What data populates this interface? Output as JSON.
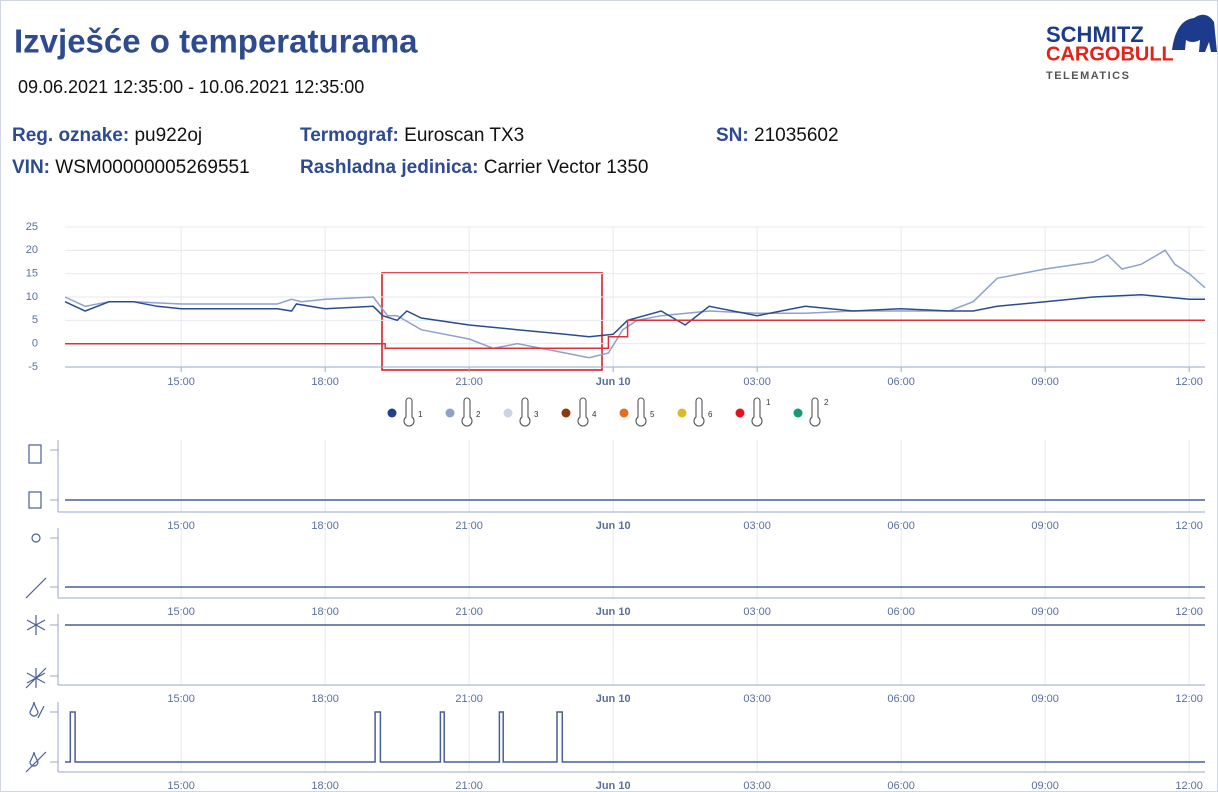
{
  "header": {
    "title": "Izvješće o temperaturama",
    "period": "09.06.2021 12:35:00 - 10.06.2021 12:35:00",
    "logo": {
      "line1": "SCHMITZ",
      "line2": "CARGOBULL",
      "line3": "TELEMATICS"
    },
    "fields": [
      {
        "label": "Reg. oznake:",
        "value": "pu922oj"
      },
      {
        "label": "Termograf:",
        "value": "Euroscan TX3"
      },
      {
        "label": "SN:",
        "value": "21035602"
      },
      {
        "label": "VIN:",
        "value": "WSM00000005269551"
      },
      {
        "label": "Rashladna jedinica:",
        "value": "Carrier Vector 1350"
      }
    ]
  },
  "chart_data": [
    {
      "type": "line",
      "xlim": [
        12.58,
        36.33
      ],
      "xticks": [
        {
          "value": 15,
          "label": "15:00"
        },
        {
          "value": 18,
          "label": "18:00"
        },
        {
          "value": 21,
          "label": "21:00"
        },
        {
          "value": 24,
          "label": "Jun 10"
        },
        {
          "value": 27,
          "label": "03:00"
        },
        {
          "value": 30,
          "label": "06:00"
        },
        {
          "value": 33,
          "label": "09:00"
        },
        {
          "value": 36,
          "label": "12:00"
        }
      ],
      "ylim": [
        -5,
        25
      ],
      "yticks": [
        -5,
        0,
        5,
        10,
        15,
        20,
        25
      ],
      "grid": true,
      "series": [
        {
          "color": "#8fa1cc",
          "x": [
            12.58,
            13.0,
            13.5,
            14.0,
            15.0,
            16.0,
            17.0,
            17.3,
            17.5,
            18.0,
            19.0,
            19.3,
            19.5,
            20.0,
            21.0,
            21.5,
            22.0,
            23.0,
            23.5,
            23.9,
            24.2,
            24.5,
            25.0,
            26.0,
            27.0,
            28.0,
            29.0,
            30.0,
            31.0,
            31.5,
            32.0,
            33.0,
            34.0,
            34.3,
            34.6,
            35.0,
            35.5,
            35.7,
            36.0,
            36.33
          ],
          "values": [
            10,
            8,
            9,
            9,
            8.5,
            8.5,
            8.5,
            9.5,
            9,
            9.5,
            10,
            6,
            6,
            3,
            1,
            -1,
            0,
            -2,
            -3,
            -2,
            3,
            5,
            6,
            7,
            6.5,
            6.5,
            7,
            7,
            7,
            9,
            14,
            16,
            17.5,
            19,
            16,
            17,
            20,
            17,
            15,
            12
          ]
        },
        {
          "color": "#2b4c8c",
          "x": [
            12.58,
            13.0,
            13.5,
            14.0,
            14.5,
            15.0,
            16.0,
            17.0,
            17.3,
            17.4,
            18.0,
            19.0,
            19.2,
            19.5,
            19.7,
            20.0,
            21.0,
            22.0,
            23.0,
            23.5,
            24.0,
            24.3,
            25.0,
            25.5,
            26.0,
            27.0,
            28.0,
            29.0,
            30.0,
            31.0,
            31.5,
            32.0,
            33.0,
            34.0,
            35.0,
            35.5,
            36.0,
            36.33
          ],
          "values": [
            9,
            7,
            9,
            9,
            8,
            7.5,
            7.5,
            7.5,
            7,
            8.5,
            7.5,
            8,
            6,
            5,
            7,
            5.5,
            4,
            3,
            2,
            1.5,
            2,
            5,
            7,
            4,
            8,
            6,
            8,
            7,
            7.5,
            7,
            7,
            8,
            9,
            10,
            10.5,
            10,
            9.5,
            9.5
          ]
        },
        {
          "color": "#e0303a",
          "x": [
            12.58,
            19.25,
            19.25,
            23.9,
            23.9,
            24.3,
            24.3,
            36.33
          ],
          "values": [
            0,
            0,
            -1,
            -1,
            1.5,
            1.5,
            5,
            5
          ]
        }
      ],
      "legend": [
        {
          "label": "1",
          "color": "#1f3f8f"
        },
        {
          "label": "2",
          "color": "#8fa1cc"
        },
        {
          "label": "3",
          "color": "#ccd3e3"
        },
        {
          "label": "4",
          "color": "#8b3a0f"
        },
        {
          "label": "5",
          "color": "#e66a1f"
        },
        {
          "label": "6",
          "color": "#e0b92a"
        },
        {
          "label": "1",
          "color": "#e3121e"
        },
        {
          "label": "2",
          "color": "#149a7a"
        }
      ]
    },
    {
      "type": "step",
      "xlim": [
        12.58,
        36.33
      ],
      "ylim": [
        0,
        1
      ],
      "xticks": [
        {
          "value": 15,
          "label": "15:00"
        },
        {
          "value": 18,
          "label": "18:00"
        },
        {
          "value": 21,
          "label": "21:00"
        },
        {
          "value": 24,
          "label": "Jun 10"
        },
        {
          "value": 27,
          "label": "03:00"
        },
        {
          "value": 30,
          "label": "06:00"
        },
        {
          "value": 33,
          "label": "09:00"
        },
        {
          "value": 36,
          "label": "12:00"
        }
      ],
      "series": [
        {
          "color": "#4a5f95",
          "x": [
            12.58,
            36.33
          ],
          "values": [
            0,
            0
          ]
        }
      ]
    },
    {
      "type": "step",
      "xlim": [
        12.58,
        36.33
      ],
      "ylim": [
        0,
        1
      ],
      "xticks": [
        {
          "value": 15,
          "label": "15:00"
        },
        {
          "value": 18,
          "label": "18:00"
        },
        {
          "value": 21,
          "label": "21:00"
        },
        {
          "value": 24,
          "label": "Jun 10"
        },
        {
          "value": 27,
          "label": "03:00"
        },
        {
          "value": 30,
          "label": "06:00"
        },
        {
          "value": 33,
          "label": "09:00"
        },
        {
          "value": 36,
          "label": "12:00"
        }
      ],
      "series": [
        {
          "color": "#4a5f95",
          "x": [
            12.58,
            36.33
          ],
          "values": [
            0,
            0
          ]
        }
      ]
    },
    {
      "type": "step",
      "xlim": [
        12.58,
        36.33
      ],
      "ylim": [
        0,
        1
      ],
      "xticks": [
        {
          "value": 15,
          "label": "15:00"
        },
        {
          "value": 18,
          "label": "18:00"
        },
        {
          "value": 21,
          "label": "21:00"
        },
        {
          "value": 24,
          "label": "Jun 10"
        },
        {
          "value": 27,
          "label": "03:00"
        },
        {
          "value": 30,
          "label": "06:00"
        },
        {
          "value": 33,
          "label": "09:00"
        },
        {
          "value": 36,
          "label": "12:00"
        }
      ],
      "series": [
        {
          "color": "#4a5f95",
          "x": [
            12.58,
            36.33
          ],
          "values": [
            1,
            1
          ]
        }
      ]
    },
    {
      "type": "step",
      "xlim": [
        12.58,
        36.33
      ],
      "ylim": [
        0,
        1
      ],
      "xticks": [
        {
          "value": 15,
          "label": "15:00"
        },
        {
          "value": 18,
          "label": "18:00"
        },
        {
          "value": 21,
          "label": "21:00"
        },
        {
          "value": 24,
          "label": "Jun 10"
        },
        {
          "value": 27,
          "label": "03:00"
        },
        {
          "value": 30,
          "label": "06:00"
        },
        {
          "value": 33,
          "label": "09:00"
        },
        {
          "value": 36,
          "label": "12:00"
        }
      ],
      "series": [
        {
          "color": "#4a5f95",
          "x": [
            12.58,
            12.69,
            12.79,
            19.04,
            19.15,
            20.4,
            20.48,
            21.63,
            21.71,
            22.83,
            22.94,
            36.33
          ],
          "values": [
            0,
            1,
            0,
            1,
            0,
            1,
            0,
            1,
            0,
            1,
            0,
            0
          ]
        }
      ]
    }
  ]
}
